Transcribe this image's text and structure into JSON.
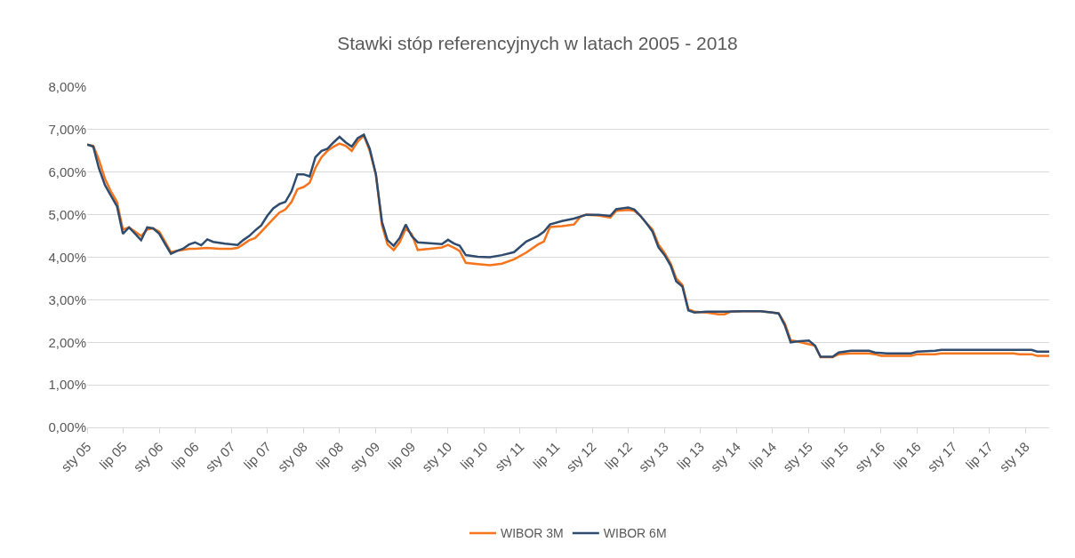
{
  "chart_data": {
    "type": "line",
    "title": "Stawki stóp referencyjnych w latach 2005 - 2018",
    "series": [
      {
        "name": "WIBOR 3M",
        "color": "#f5741c",
        "x": [
          "2005-01",
          "2005-02",
          "2005-03",
          "2005-04",
          "2005-05",
          "2005-06",
          "2005-07",
          "2005-08",
          "2005-09",
          "2005-10",
          "2005-11",
          "2005-12",
          "2006-01",
          "2006-02",
          "2006-03",
          "2006-04",
          "2006-05",
          "2006-06",
          "2006-07",
          "2006-09",
          "2006-11",
          "2007-01",
          "2007-02",
          "2007-03",
          "2007-04",
          "2007-05",
          "2007-06",
          "2007-07",
          "2007-08",
          "2007-09",
          "2007-10",
          "2007-11",
          "2007-12",
          "2008-01",
          "2008-02",
          "2008-03",
          "2008-04",
          "2008-05",
          "2008-06",
          "2008-07",
          "2008-08",
          "2008-09",
          "2008-10",
          "2008-11",
          "2008-12",
          "2009-01",
          "2009-02",
          "2009-03",
          "2009-04",
          "2009-05",
          "2009-06",
          "2009-07",
          "2009-08",
          "2009-10",
          "2009-12",
          "2010-01",
          "2010-02",
          "2010-03",
          "2010-04",
          "2010-06",
          "2010-08",
          "2010-10",
          "2010-12",
          "2011-02",
          "2011-04",
          "2011-05",
          "2011-06",
          "2011-08",
          "2011-10",
          "2011-11",
          "2011-12",
          "2012-02",
          "2012-04",
          "2012-05",
          "2012-07",
          "2012-08",
          "2012-09",
          "2012-10",
          "2012-11",
          "2012-12",
          "2013-01",
          "2013-02",
          "2013-03",
          "2013-04",
          "2013-05",
          "2013-06",
          "2013-08",
          "2013-10",
          "2013-11",
          "2013-12",
          "2014-02",
          "2014-05",
          "2014-07",
          "2014-08",
          "2014-09",
          "2014-10",
          "2014-11",
          "2015-02",
          "2015-03",
          "2015-05",
          "2015-06",
          "2015-08",
          "2015-11",
          "2015-12",
          "2016-01",
          "2016-06",
          "2016-07",
          "2016-10",
          "2016-11",
          "2017-11",
          "2017-12",
          "2018-02",
          "2018-03",
          "2018-05"
        ],
        "values": [
          6.65,
          6.62,
          6.3,
          5.85,
          5.55,
          5.3,
          4.65,
          4.7,
          4.6,
          4.5,
          4.65,
          4.68,
          4.6,
          4.35,
          4.12,
          4.15,
          4.17,
          4.2,
          4.2,
          4.22,
          4.2,
          4.2,
          4.22,
          4.3,
          4.4,
          4.45,
          4.6,
          4.75,
          4.9,
          5.05,
          5.12,
          5.3,
          5.6,
          5.65,
          5.75,
          6.1,
          6.35,
          6.5,
          6.6,
          6.67,
          6.62,
          6.5,
          6.72,
          6.86,
          6.5,
          5.95,
          4.75,
          4.3,
          4.17,
          4.35,
          4.67,
          4.55,
          4.17,
          4.2,
          4.23,
          4.29,
          4.22,
          4.15,
          3.87,
          3.84,
          3.81,
          3.85,
          3.95,
          4.11,
          4.3,
          4.37,
          4.71,
          4.73,
          4.77,
          4.95,
          5.0,
          4.98,
          4.93,
          5.09,
          5.11,
          5.09,
          4.97,
          4.8,
          4.65,
          4.3,
          4.1,
          3.85,
          3.5,
          3.35,
          2.78,
          2.72,
          2.7,
          2.66,
          2.66,
          2.72,
          2.73,
          2.73,
          2.7,
          2.68,
          2.45,
          2.05,
          2.02,
          1.92,
          1.65,
          1.65,
          1.72,
          1.74,
          1.74,
          1.72,
          1.68,
          1.68,
          1.72,
          1.72,
          1.74,
          1.74,
          1.72,
          1.72,
          1.68,
          1.68
        ]
      },
      {
        "name": "WIBOR 6M",
        "color": "#2f4b6e",
        "x": [
          "2005-01",
          "2005-02",
          "2005-03",
          "2005-04",
          "2005-05",
          "2005-06",
          "2005-07",
          "2005-08",
          "2005-09",
          "2005-10",
          "2005-11",
          "2005-12",
          "2006-01",
          "2006-02",
          "2006-03",
          "2006-04",
          "2006-05",
          "2006-06",
          "2006-07",
          "2006-08",
          "2006-09",
          "2006-10",
          "2006-12",
          "2007-02",
          "2007-03",
          "2007-04",
          "2007-05",
          "2007-06",
          "2007-07",
          "2007-08",
          "2007-09",
          "2007-10",
          "2007-11",
          "2007-12",
          "2008-01",
          "2008-02",
          "2008-03",
          "2008-04",
          "2008-05",
          "2008-06",
          "2008-07",
          "2008-08",
          "2008-09",
          "2008-10",
          "2008-11",
          "2008-12",
          "2009-01",
          "2009-02",
          "2009-03",
          "2009-04",
          "2009-05",
          "2009-06",
          "2009-07",
          "2009-08",
          "2009-10",
          "2009-12",
          "2010-01",
          "2010-02",
          "2010-03",
          "2010-04",
          "2010-06",
          "2010-08",
          "2010-10",
          "2010-12",
          "2011-02",
          "2011-04",
          "2011-05",
          "2011-06",
          "2011-08",
          "2011-10",
          "2011-12",
          "2012-02",
          "2012-04",
          "2012-05",
          "2012-07",
          "2012-08",
          "2012-09",
          "2012-10",
          "2012-11",
          "2012-12",
          "2013-01",
          "2013-02",
          "2013-03",
          "2013-04",
          "2013-05",
          "2013-06",
          "2013-08",
          "2013-11",
          "2014-02",
          "2014-05",
          "2014-07",
          "2014-08",
          "2014-09",
          "2014-10",
          "2014-11",
          "2015-01",
          "2015-02",
          "2015-03",
          "2015-05",
          "2015-06",
          "2015-08",
          "2015-11",
          "2015-12",
          "2016-02",
          "2016-06",
          "2016-07",
          "2016-10",
          "2016-11",
          "2018-02",
          "2018-03",
          "2018-05"
        ],
        "values": [
          6.65,
          6.6,
          6.1,
          5.7,
          5.45,
          5.2,
          4.55,
          4.7,
          4.55,
          4.4,
          4.7,
          4.68,
          4.55,
          4.3,
          4.08,
          4.15,
          4.2,
          4.3,
          4.35,
          4.28,
          4.42,
          4.36,
          4.32,
          4.29,
          4.4,
          4.5,
          4.63,
          4.75,
          4.97,
          5.15,
          5.25,
          5.3,
          5.55,
          5.95,
          5.95,
          5.9,
          6.35,
          6.5,
          6.55,
          6.7,
          6.83,
          6.7,
          6.6,
          6.8,
          6.88,
          6.55,
          5.95,
          4.83,
          4.4,
          4.27,
          4.45,
          4.77,
          4.5,
          4.35,
          4.33,
          4.31,
          4.41,
          4.32,
          4.27,
          4.05,
          4.01,
          4.0,
          4.05,
          4.12,
          4.37,
          4.5,
          4.6,
          4.77,
          4.85,
          4.91,
          5.0,
          5.0,
          4.97,
          5.13,
          5.17,
          5.12,
          4.97,
          4.8,
          4.6,
          4.23,
          4.05,
          3.8,
          3.43,
          3.31,
          2.75,
          2.7,
          2.72,
          2.72,
          2.73,
          2.73,
          2.7,
          2.68,
          2.4,
          2.0,
          2.02,
          2.04,
          1.92,
          1.66,
          1.66,
          1.76,
          1.8,
          1.8,
          1.76,
          1.74,
          1.74,
          1.78,
          1.8,
          1.82,
          1.82,
          1.78,
          1.78
        ]
      }
    ],
    "xlim": [
      "2005-01",
      "2018-05"
    ],
    "xticks": [
      {
        "value": "2005-01",
        "label": "sty 05"
      },
      {
        "value": "2005-07",
        "label": "lip 05"
      },
      {
        "value": "2006-01",
        "label": "sty 06"
      },
      {
        "value": "2006-07",
        "label": "lip 06"
      },
      {
        "value": "2007-01",
        "label": "sty 07"
      },
      {
        "value": "2007-07",
        "label": "lip 07"
      },
      {
        "value": "2008-01",
        "label": "sty 08"
      },
      {
        "value": "2008-07",
        "label": "lip 08"
      },
      {
        "value": "2009-01",
        "label": "sty 09"
      },
      {
        "value": "2009-07",
        "label": "lip 09"
      },
      {
        "value": "2010-01",
        "label": "sty 10"
      },
      {
        "value": "2010-07",
        "label": "lip 10"
      },
      {
        "value": "2011-01",
        "label": "sty 11"
      },
      {
        "value": "2011-07",
        "label": "lip 11"
      },
      {
        "value": "2012-01",
        "label": "sty 12"
      },
      {
        "value": "2012-07",
        "label": "lip 12"
      },
      {
        "value": "2013-01",
        "label": "sty 13"
      },
      {
        "value": "2013-07",
        "label": "lip 13"
      },
      {
        "value": "2014-01",
        "label": "sty 14"
      },
      {
        "value": "2014-07",
        "label": "lip 14"
      },
      {
        "value": "2015-01",
        "label": "sty 15"
      },
      {
        "value": "2015-07",
        "label": "lip 15"
      },
      {
        "value": "2016-01",
        "label": "sty 16"
      },
      {
        "value": "2016-07",
        "label": "lip 16"
      },
      {
        "value": "2017-01",
        "label": "sty 17"
      },
      {
        "value": "2017-07",
        "label": "lip 17"
      },
      {
        "value": "2018-01",
        "label": "sty 18"
      }
    ],
    "ylim": [
      0,
      8
    ],
    "yticks": [
      {
        "value": 0,
        "label": "0,00%"
      },
      {
        "value": 1,
        "label": "1,00%"
      },
      {
        "value": 2,
        "label": "2,00%"
      },
      {
        "value": 3,
        "label": "3,00%"
      },
      {
        "value": 4,
        "label": "4,00%"
      },
      {
        "value": 5,
        "label": "5,00%"
      },
      {
        "value": 6,
        "label": "6,00%"
      },
      {
        "value": 7,
        "label": "7,00%"
      },
      {
        "value": 8,
        "label": "8,00%"
      }
    ],
    "grid": "y",
    "legend": "bottom",
    "marker": "none",
    "line_style": "solid"
  }
}
